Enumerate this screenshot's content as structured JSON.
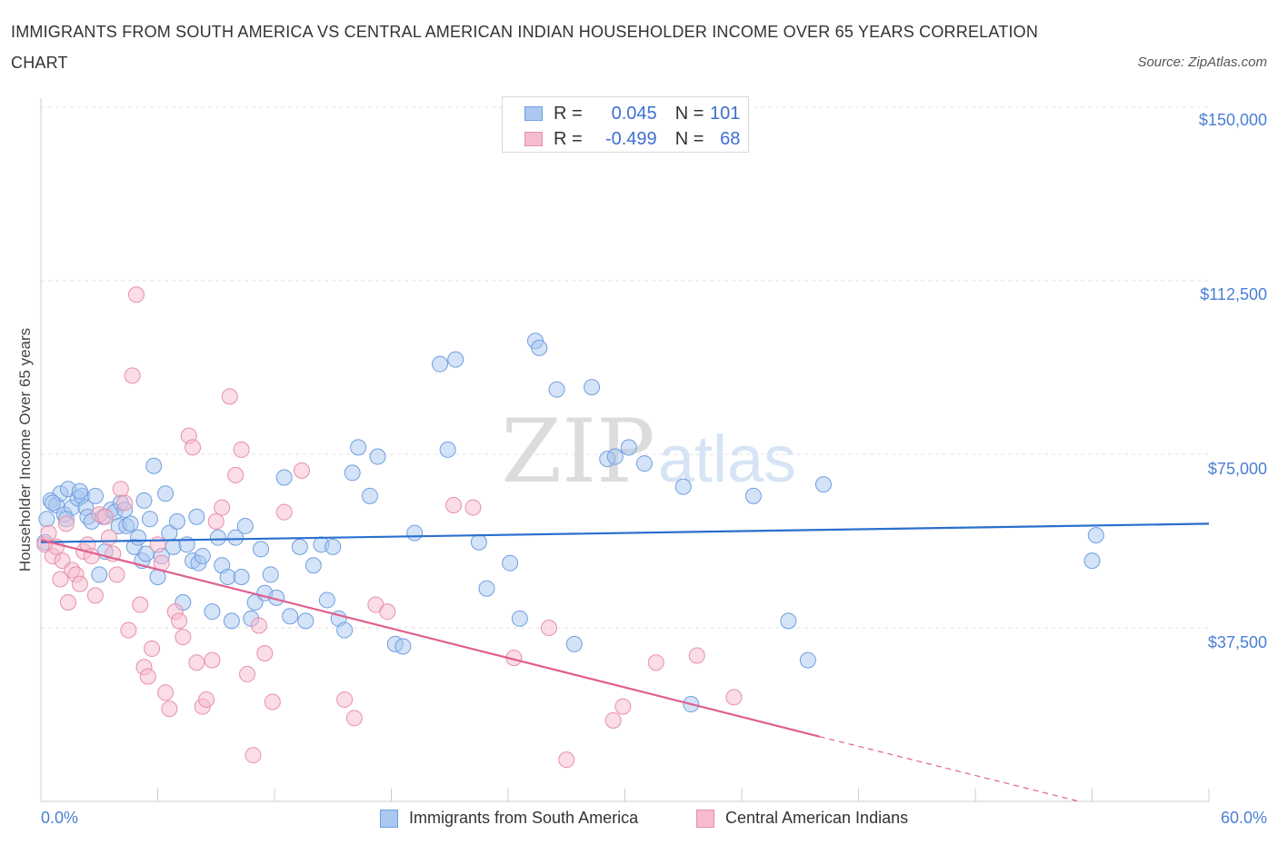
{
  "header": {
    "title": "IMMIGRANTS FROM SOUTH AMERICA VS CENTRAL AMERICAN INDIAN HOUSEHOLDER INCOME OVER 65 YEARS CORRELATION CHART",
    "source": "Source: ZipAtlas.com"
  },
  "legend": {
    "r_label": "R =",
    "n_label": "N =",
    "items": [
      {
        "r": "0.045",
        "n": "101"
      },
      {
        "r": "-0.499",
        "n": "68"
      }
    ]
  },
  "watermark": {
    "zip": "ZIP",
    "atlas": "atlas"
  },
  "colors": {
    "blue_fill": "#aac8f0",
    "blue_stroke": "#6f9fe0",
    "blue_line": "#2a6fcf",
    "pink_fill": "#f5bccd",
    "pink_stroke": "#e88fab",
    "pink_line": "#e0608e",
    "tick_label": "#4a7fd4"
  },
  "chart_data": {
    "type": "scatter",
    "title": "IMMIGRANTS FROM SOUTH AMERICA VS CENTRAL AMERICAN INDIAN HOUSEHOLDER INCOME OVER 65 YEARS CORRELATION CHART",
    "xlabel": "",
    "ylabel": "Householder Income Over 65 years",
    "xlim": [
      0,
      60
    ],
    "ylim": [
      0,
      150000
    ],
    "x_tick_labels": [
      "0.0%",
      "60.0%"
    ],
    "y_ticks": [
      37500,
      75000,
      112500,
      150000
    ],
    "y_tick_labels": [
      "$37,500",
      "$75,000",
      "$112,500",
      "$150,000"
    ],
    "grid": true,
    "legend_position": "top-center",
    "series": [
      {
        "name": "Immigrants from South America",
        "color": "#aac8f0",
        "trend": {
          "x0": 0,
          "y0": 56000,
          "x1": 60,
          "y1": 60000
        },
        "points": [
          [
            0.2,
            56000
          ],
          [
            0.3,
            61000
          ],
          [
            0.5,
            65000
          ],
          [
            0.8,
            64000
          ],
          [
            1.0,
            66500
          ],
          [
            1.2,
            62000
          ],
          [
            1.4,
            67500
          ],
          [
            1.6,
            63500
          ],
          [
            1.9,
            65500
          ],
          [
            2.1,
            66000
          ],
          [
            2.3,
            63500
          ],
          [
            2.4,
            61500
          ],
          [
            2.6,
            60500
          ],
          [
            2.8,
            66000
          ],
          [
            3.0,
            49000
          ],
          [
            3.2,
            61500
          ],
          [
            3.3,
            54000
          ],
          [
            3.6,
            63000
          ],
          [
            3.8,
            62500
          ],
          [
            4.0,
            59500
          ],
          [
            4.1,
            64500
          ],
          [
            4.4,
            59500
          ],
          [
            4.6,
            60000
          ],
          [
            4.8,
            55000
          ],
          [
            5.0,
            57000
          ],
          [
            5.2,
            52000
          ],
          [
            5.4,
            53500
          ],
          [
            5.6,
            61000
          ],
          [
            5.8,
            72500
          ],
          [
            6.0,
            48500
          ],
          [
            6.2,
            53000
          ],
          [
            6.4,
            66500
          ],
          [
            6.6,
            58000
          ],
          [
            6.8,
            55000
          ],
          [
            7.0,
            60500
          ],
          [
            7.3,
            43000
          ],
          [
            7.5,
            55500
          ],
          [
            7.8,
            52000
          ],
          [
            8.0,
            61500
          ],
          [
            8.1,
            51500
          ],
          [
            8.3,
            53000
          ],
          [
            8.8,
            41000
          ],
          [
            9.1,
            57000
          ],
          [
            9.3,
            51000
          ],
          [
            9.6,
            48500
          ],
          [
            9.8,
            39000
          ],
          [
            10.0,
            57000
          ],
          [
            10.3,
            48500
          ],
          [
            10.5,
            59500
          ],
          [
            10.8,
            39500
          ],
          [
            11.0,
            43000
          ],
          [
            11.3,
            54500
          ],
          [
            11.5,
            45000
          ],
          [
            11.8,
            49000
          ],
          [
            12.1,
            44000
          ],
          [
            12.8,
            40000
          ],
          [
            13.3,
            55000
          ],
          [
            13.6,
            39000
          ],
          [
            14.0,
            51000
          ],
          [
            14.4,
            55500
          ],
          [
            14.7,
            43500
          ],
          [
            15.0,
            55000
          ],
          [
            15.3,
            39500
          ],
          [
            15.6,
            37000
          ],
          [
            16.0,
            71000
          ],
          [
            16.9,
            66000
          ],
          [
            17.3,
            74500
          ],
          [
            18.2,
            34000
          ],
          [
            18.6,
            33500
          ],
          [
            19.2,
            58000
          ],
          [
            20.5,
            94500
          ],
          [
            20.9,
            76000
          ],
          [
            21.3,
            95500
          ],
          [
            22.5,
            56000
          ],
          [
            22.9,
            46000
          ],
          [
            24.1,
            51500
          ],
          [
            24.6,
            39500
          ],
          [
            25.4,
            99500
          ],
          [
            25.6,
            98000
          ],
          [
            26.5,
            89000
          ],
          [
            27.4,
            34000
          ],
          [
            28.3,
            89500
          ],
          [
            29.1,
            74000
          ],
          [
            29.5,
            74500
          ],
          [
            30.2,
            76500
          ],
          [
            31.0,
            73000
          ],
          [
            33.0,
            68000
          ],
          [
            33.4,
            21000
          ],
          [
            36.6,
            66000
          ],
          [
            38.4,
            39000
          ],
          [
            39.4,
            30500
          ],
          [
            40.2,
            68500
          ],
          [
            54.0,
            52000
          ],
          [
            54.2,
            57500
          ],
          [
            5.3,
            65000
          ],
          [
            2.0,
            67000
          ],
          [
            4.3,
            63000
          ],
          [
            12.5,
            70000
          ],
          [
            16.3,
            76500
          ],
          [
            0.6,
            64500
          ],
          [
            1.3,
            61000
          ]
        ]
      },
      {
        "name": "Central American Indians",
        "color": "#f5bccd",
        "trend": {
          "x0": 0,
          "y0": 56500,
          "x1": 40,
          "y1": 14000,
          "dash_x1": 60,
          "dash_y1": -7000
        },
        "points": [
          [
            0.2,
            55500
          ],
          [
            0.4,
            58000
          ],
          [
            0.6,
            53000
          ],
          [
            0.8,
            55000
          ],
          [
            1.0,
            48000
          ],
          [
            1.1,
            52000
          ],
          [
            1.3,
            60000
          ],
          [
            1.4,
            43000
          ],
          [
            1.6,
            50000
          ],
          [
            1.8,
            49000
          ],
          [
            2.0,
            47000
          ],
          [
            2.2,
            54000
          ],
          [
            2.4,
            55500
          ],
          [
            2.6,
            53000
          ],
          [
            2.8,
            44500
          ],
          [
            3.0,
            62000
          ],
          [
            3.3,
            61500
          ],
          [
            3.5,
            57000
          ],
          [
            3.7,
            53500
          ],
          [
            3.9,
            49000
          ],
          [
            4.1,
            67500
          ],
          [
            4.3,
            64500
          ],
          [
            4.5,
            37000
          ],
          [
            4.7,
            92000
          ],
          [
            4.9,
            109500
          ],
          [
            5.1,
            42500
          ],
          [
            5.3,
            29000
          ],
          [
            5.5,
            27000
          ],
          [
            5.7,
            33000
          ],
          [
            6.0,
            55500
          ],
          [
            6.2,
            51500
          ],
          [
            6.4,
            23500
          ],
          [
            6.6,
            20000
          ],
          [
            6.9,
            41000
          ],
          [
            7.1,
            39000
          ],
          [
            7.3,
            35500
          ],
          [
            7.6,
            79000
          ],
          [
            7.8,
            76500
          ],
          [
            8.0,
            30000
          ],
          [
            8.3,
            20500
          ],
          [
            8.5,
            22000
          ],
          [
            8.8,
            30500
          ],
          [
            9.0,
            60500
          ],
          [
            9.3,
            63500
          ],
          [
            9.7,
            87500
          ],
          [
            10.0,
            70500
          ],
          [
            10.3,
            76000
          ],
          [
            10.6,
            27500
          ],
          [
            10.9,
            10000
          ],
          [
            11.2,
            38000
          ],
          [
            11.5,
            32000
          ],
          [
            11.9,
            21500
          ],
          [
            12.5,
            62500
          ],
          [
            13.4,
            71500
          ],
          [
            15.6,
            22000
          ],
          [
            16.1,
            18000
          ],
          [
            17.2,
            42500
          ],
          [
            17.8,
            41000
          ],
          [
            21.2,
            64000
          ],
          [
            22.2,
            63500
          ],
          [
            24.3,
            31000
          ],
          [
            26.1,
            37500
          ],
          [
            27.0,
            9000
          ],
          [
            29.4,
            17500
          ],
          [
            29.9,
            20500
          ],
          [
            31.6,
            30000
          ],
          [
            33.7,
            31500
          ],
          [
            35.6,
            22500
          ]
        ]
      }
    ]
  }
}
